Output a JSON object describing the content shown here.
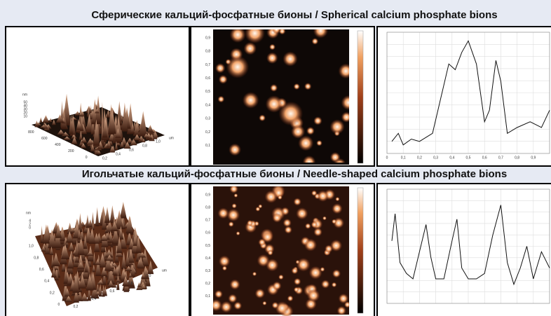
{
  "rows": [
    {
      "title": "Сферические кальций-фосфатные бионы / Spherical calcium phosphate bions",
      "surface": {
        "z_unit": "nm",
        "z_ticks": [
          "50",
          "40",
          "30",
          "20",
          "10"
        ],
        "y_ticks": [
          "800",
          "600",
          "400",
          "200",
          "0"
        ],
        "x_unit": "um",
        "x_ticks": [
          "0,2",
          "0,4",
          "0,6",
          "0,8",
          "1,0"
        ]
      },
      "image": {
        "y_ticks": [
          "0,9",
          "0,8",
          "0,7",
          "0,6",
          "0,5",
          "0,4",
          "0,3",
          "0,2",
          "0,1"
        ]
      },
      "profile": {
        "x_ticks": [
          "0",
          "0,1",
          "0,2",
          "0,3",
          "0,4",
          "0,5",
          "0,6",
          "0,7",
          "0,8",
          "0,9"
        ]
      }
    },
    {
      "title": "Игольчатые кальций-фосфатные бионы / Needle-shaped calcium phosphate bions",
      "surface": {
        "z_unit": "nm",
        "z_ticks": [
          "4",
          "2",
          "0"
        ],
        "y_ticks": [
          "1,0",
          "0,8",
          "0,6",
          "0,4",
          "0,2",
          "0"
        ],
        "x_unit": "um",
        "x_ticks": [
          "0,2",
          "0,4",
          "0,6",
          "0,8",
          "1,0"
        ]
      },
      "image": {
        "y_ticks": [
          "0,9",
          "0,8",
          "0,7",
          "0,6",
          "0,5",
          "0,4",
          "0,3",
          "0,2",
          "0,1"
        ]
      },
      "profile": {
        "x_ticks": []
      }
    }
  ]
}
